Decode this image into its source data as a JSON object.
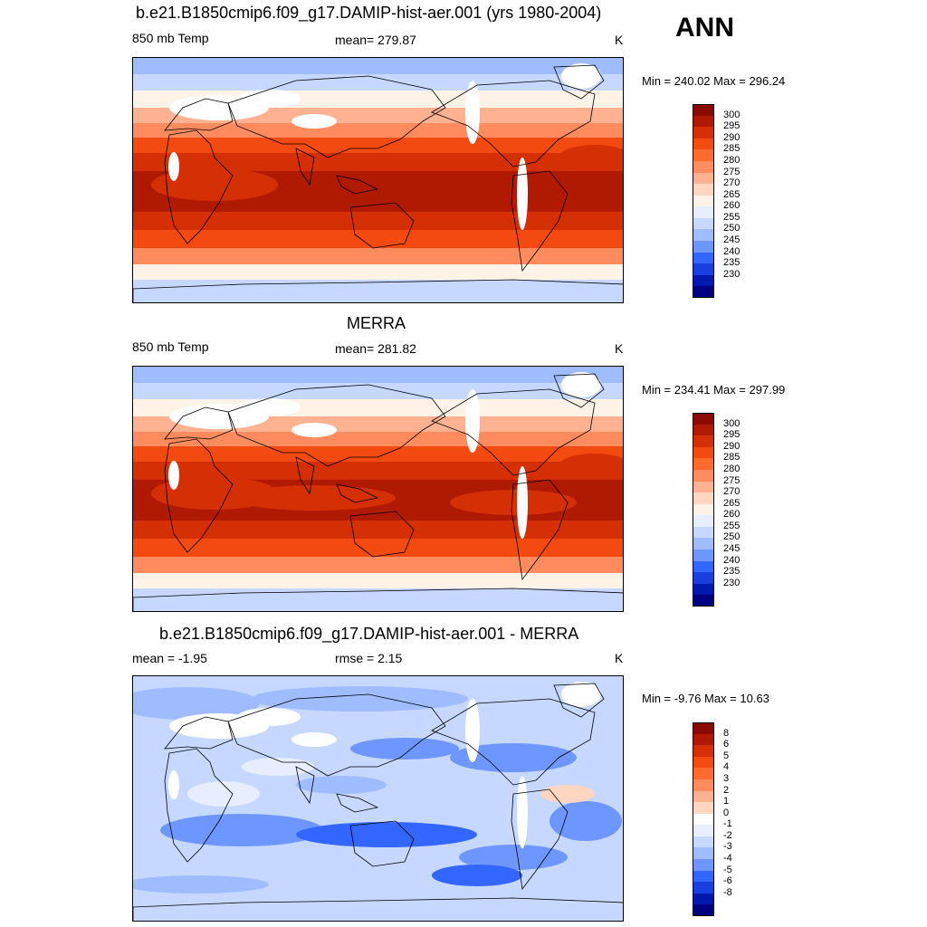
{
  "season": "ANN",
  "units": "K",
  "colors": {
    "abs_fill": [
      "#000080",
      "#0018b0",
      "#1a3fe0",
      "#3366ff",
      "#6d96ff",
      "#9ebcff",
      "#c6d8ff",
      "#e6eeff",
      "#fff2e6",
      "#ffd6bf",
      "#ffb291",
      "#ff8b5e",
      "#ff6a2e",
      "#f34a12",
      "#d52f06",
      "#b01a02",
      "#8a0a00"
    ],
    "diff_fill": [
      "#000080",
      "#0018b0",
      "#1a3fe0",
      "#3366ff",
      "#6d96ff",
      "#9ebcff",
      "#c6d8ff",
      "#e6eeff",
      "#ffffff",
      "#ffd6bf",
      "#ffb291",
      "#ff8b5e",
      "#ff6a2e",
      "#f34a12",
      "#d52f06",
      "#b01a02",
      "#8a0a00"
    ],
    "land_missing": "#ffffff",
    "coast": "#000000"
  },
  "panels": [
    {
      "title": "b.e21.B1850cmip6.f09_g17.DAMIP-hist-aer.001 (yrs 1980-2004)",
      "left": "850 mb Temp",
      "center": "mean= 279.87",
      "right": "K",
      "minmax": "Min = 240.02 Max = 296.24",
      "levels": [
        "300",
        "295",
        "290",
        "285",
        "280",
        "275",
        "270",
        "265",
        "260",
        "255",
        "250",
        "245",
        "240",
        "235",
        "230"
      ]
    },
    {
      "title": "MERRA",
      "left": "850 mb Temp",
      "center": "mean= 281.82",
      "right": "K",
      "minmax": "Min = 234.41 Max = 297.99",
      "levels": [
        "300",
        "295",
        "290",
        "285",
        "280",
        "275",
        "270",
        "265",
        "260",
        "255",
        "250",
        "245",
        "240",
        "235",
        "230"
      ]
    },
    {
      "title": "b.e21.B1850cmip6.f09_g17.DAMIP-hist-aer.001 - MERRA",
      "left": "mean =  -1.95",
      "center": "rmse =   2.15",
      "right": "K",
      "minmax": "Min =  -9.76 Max =  10.63",
      "levels": [
        "8",
        "6",
        "5",
        "4",
        "3",
        "2",
        "1",
        "0",
        "-1",
        "-2",
        "-3",
        "-4",
        "-5",
        "-6",
        "-8"
      ]
    }
  ]
}
